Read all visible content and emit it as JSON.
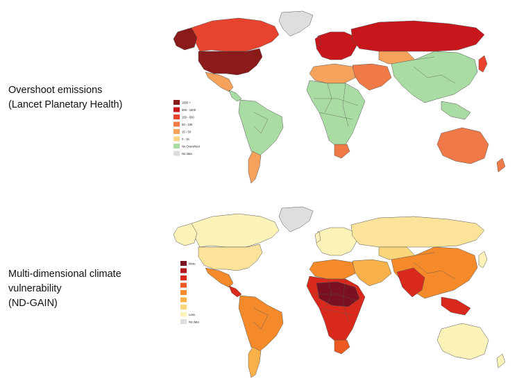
{
  "panels": {
    "top": {
      "label": "Overshoot emissions\n(Lancet Planetary Health)",
      "legend": [
        {
          "label": "1500 +",
          "color": "#8b1a1a"
        },
        {
          "label": "500 - 1500",
          "color": "#c8161d"
        },
        {
          "label": "150 - 500",
          "color": "#e8432e"
        },
        {
          "label": "50 - 150",
          "color": "#f07a47"
        },
        {
          "label": "15 - 50",
          "color": "#f6a25c"
        },
        {
          "label": "0 - 15",
          "color": "#fbd58a"
        },
        {
          "label": "No Overshoot",
          "color": "#a9dca3"
        },
        {
          "label": "No data",
          "color": "#dedede"
        }
      ],
      "region_colors": {
        "north_america": "#e8432e",
        "usa": "#8b1a1a",
        "mexico": "#f6a25c",
        "central_america": "#a9dca3",
        "south_america": "#a9dca3",
        "south_cone": "#f6a25c",
        "greenland": "#dedede",
        "europe": "#c8161d",
        "russia": "#c8161d",
        "africa": "#a9dca3",
        "north_africa": "#f6a25c",
        "south_africa": "#f07a47",
        "middle_east": "#f07a47",
        "central_asia": "#f6a25c",
        "asia": "#a9dca3",
        "japan": "#e8432e",
        "australia": "#f07a47",
        "new_zealand": "#f07a47"
      }
    },
    "bottom": {
      "label": "Multi-dimensional climate\nvulnerability\n(ND-GAIN)",
      "legend": [
        {
          "label": "More",
          "color": "#7a1020"
        },
        {
          "label": "",
          "color": "#b3151b"
        },
        {
          "label": "",
          "color": "#d9281c"
        },
        {
          "label": "",
          "color": "#ec5a21"
        },
        {
          "label": "",
          "color": "#f58a2a"
        },
        {
          "label": "",
          "color": "#f8b148"
        },
        {
          "label": "",
          "color": "#fbd57a"
        },
        {
          "label": "Less",
          "color": "#fdf2b8"
        },
        {
          "label": "No data",
          "color": "#dedede"
        }
      ],
      "region_colors": {
        "north_america": "#fdf2b8",
        "usa": "#fbe39a",
        "mexico": "#f58a2a",
        "central_america": "#d9281c",
        "south_america": "#f58a2a",
        "south_cone": "#f8b148",
        "greenland": "#dedede",
        "europe": "#fdf2b8",
        "russia": "#fbe39a",
        "africa": "#d9281c",
        "sahel": "#7a1020",
        "north_africa": "#f58a2a",
        "south_africa": "#ec5a21",
        "middle_east": "#f8b148",
        "central_asia": "#fbd57a",
        "asia": "#f58a2a",
        "south_asia": "#d9281c",
        "japan": "#fdf2b8",
        "australia": "#fdf2b8",
        "new_zealand": "#fdf2b8",
        "indonesia": "#d9281c"
      }
    }
  }
}
